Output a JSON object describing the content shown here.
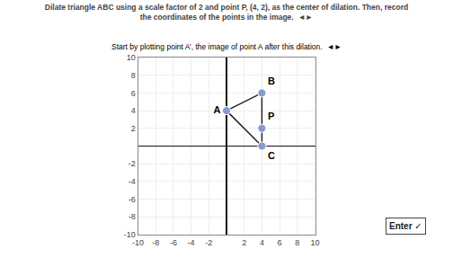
{
  "chart_data": {
    "type": "scatter",
    "title": "Dilate triangle ABC using a scale factor of 2 and point P, (4, 2), as the center of dilation. Then, record\nthe coordinates of the points in the image.  ◄►",
    "subtitle": "Start by plotting point A’, the image of point A after this dilation.  ◄►",
    "xlim": [
      -10,
      10
    ],
    "ylim": [
      -10,
      10
    ],
    "xticks": [
      -10,
      -8,
      -6,
      -4,
      -2,
      2,
      4,
      6,
      8,
      10
    ],
    "yticks": [
      -10,
      -8,
      -6,
      -4,
      -2,
      2,
      4,
      6,
      8,
      10
    ],
    "grid": true,
    "series": [
      {
        "type": "polygon",
        "x": [
          0,
          4,
          4
        ],
        "y": [
          4,
          6,
          0
        ],
        "color": "#222222"
      },
      {
        "type": "scatter",
        "x": [
          0,
          4,
          4
        ],
        "y": [
          4,
          6,
          0
        ],
        "labels": [
          "A",
          "B",
          "C"
        ],
        "color": "#8899cc",
        "marker": "circle"
      },
      {
        "type": "scatter",
        "x": [
          4
        ],
        "y": [
          2
        ],
        "labels": [
          "P"
        ],
        "color": "#8899cc",
        "marker": "circle"
      }
    ],
    "annotations": [
      {
        "text": "Enter ✓"
      }
    ]
  }
}
